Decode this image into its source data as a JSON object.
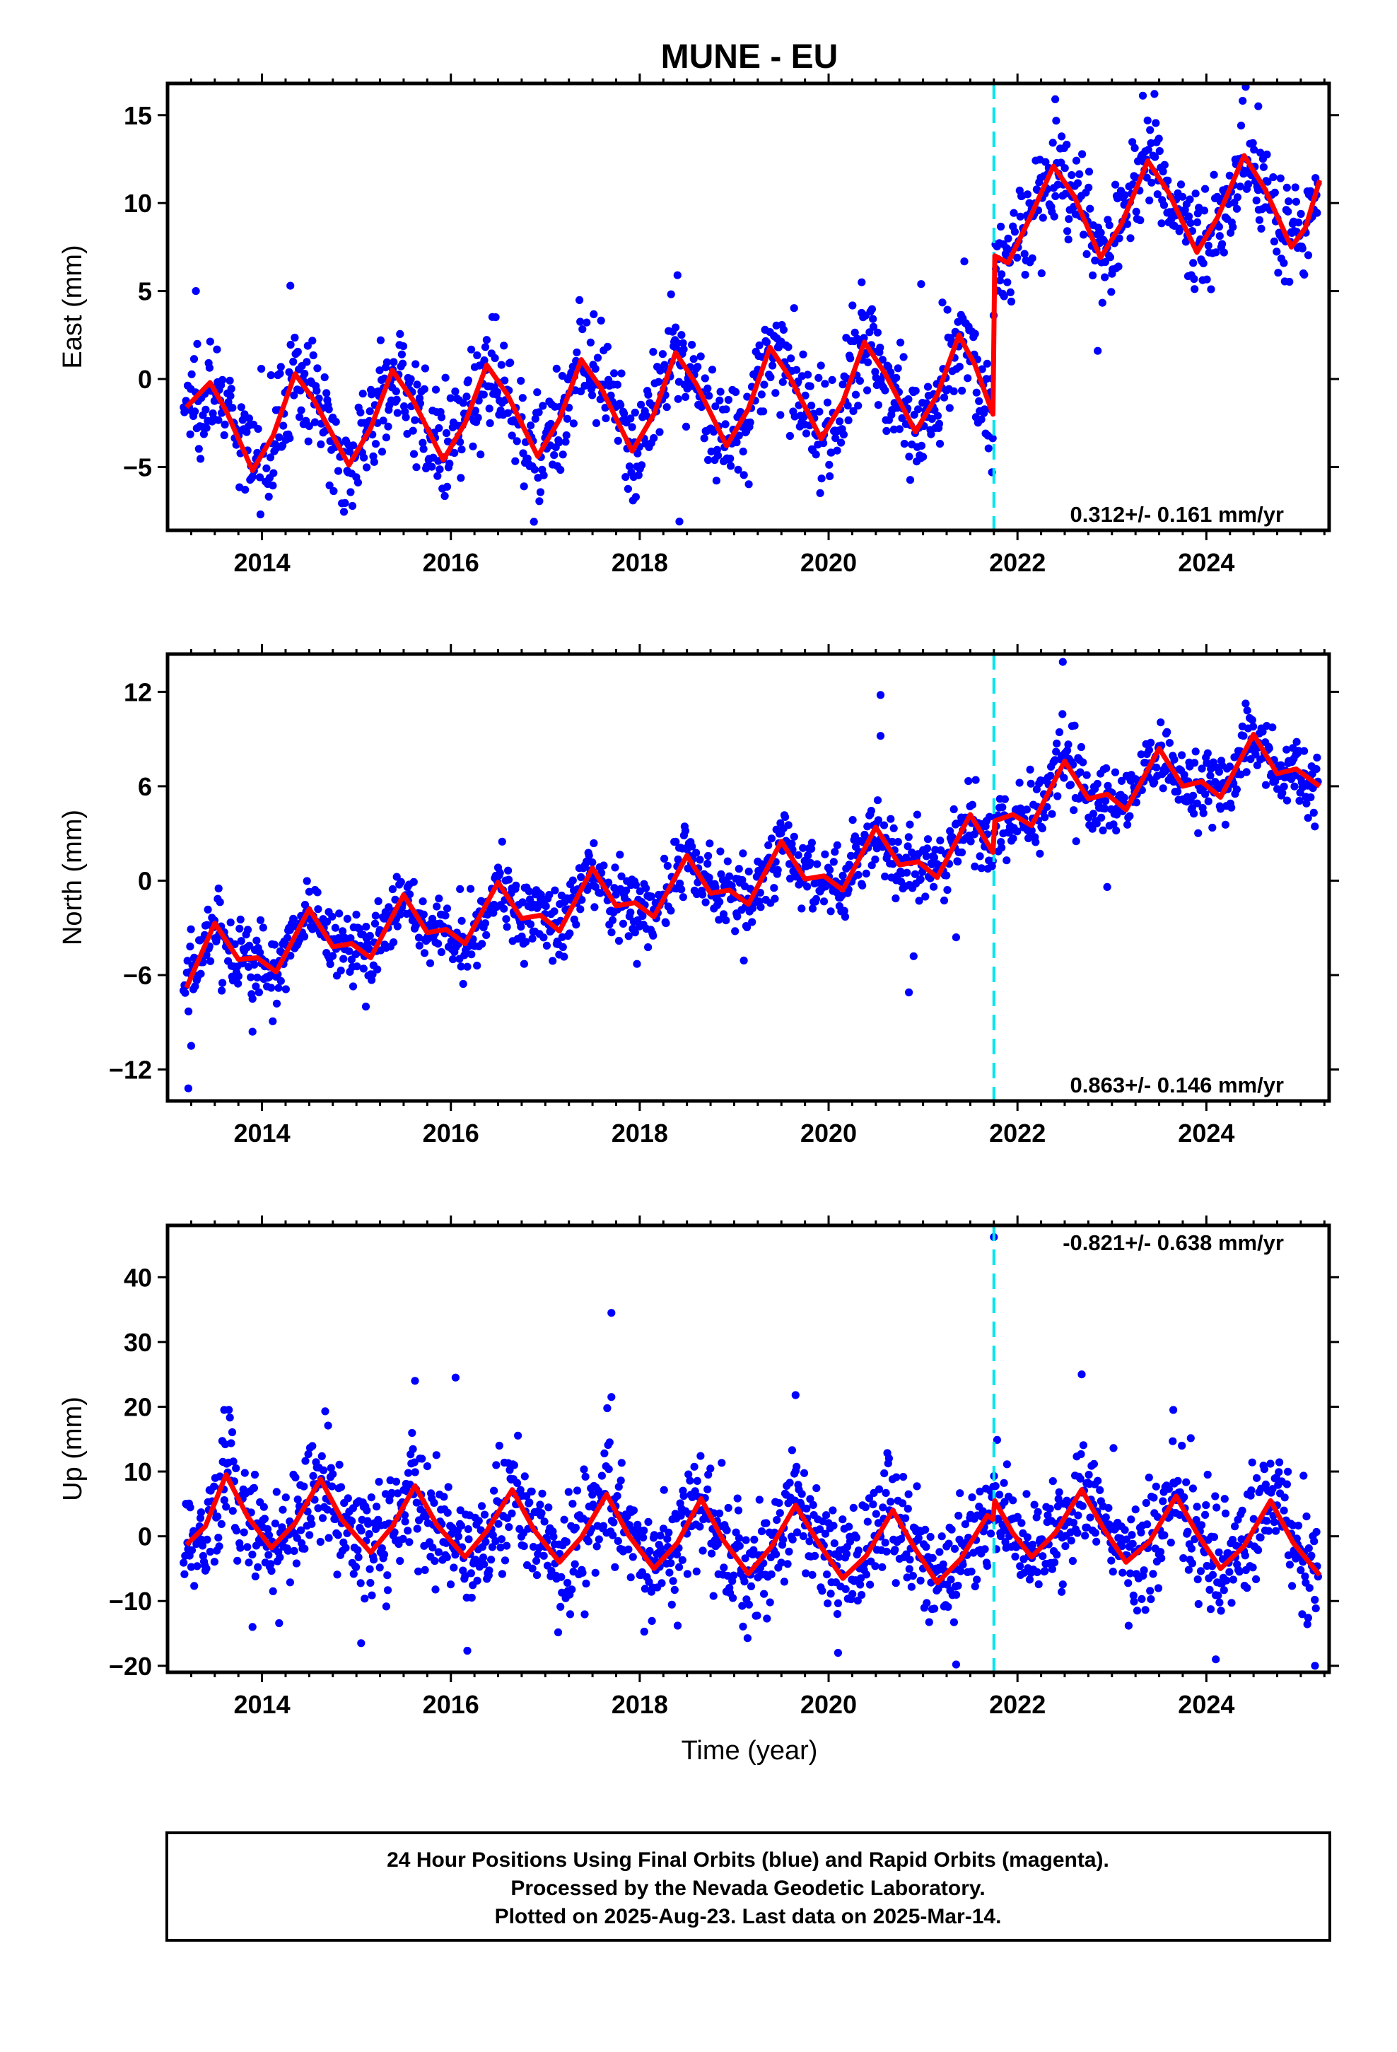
{
  "title": "MUNE - EU",
  "xlabel": "Time (year)",
  "footer": {
    "line1": "24 Hour Positions Using Final Orbits (blue) and Rapid Orbits (magenta).",
    "line2": "Processed by the Nevada Geodetic Laboratory.",
    "line3": "Plotted on 2025-Aug-23. Last data on 2025-Mar-14."
  },
  "colors": {
    "data": "#0000ff",
    "model": "#ff0000",
    "offset": "#00e5ee",
    "frame": "#000000"
  },
  "chart_data": [
    {
      "type": "scatter",
      "ylabel": "East (mm)",
      "rate_label": "0.312+/- 0.161 mm/yr",
      "xlim": [
        2013.0,
        2025.3
      ],
      "ylim": [
        -8.6,
        16.8
      ],
      "xticks": [
        2014,
        2016,
        2018,
        2020,
        2022,
        2024
      ],
      "yticks": [
        -5,
        0,
        5,
        10,
        15
      ],
      "yticklabels": [
        "−5",
        "0",
        "5",
        "10",
        "15"
      ],
      "offset_epoch": 2021.75,
      "model": [
        {
          "x": 2013.2,
          "y": -1.6
        },
        {
          "x": 2013.45,
          "y": -0.2
        },
        {
          "x": 2013.62,
          "y": -1.8
        },
        {
          "x": 2013.9,
          "y": -5.2
        },
        {
          "x": 2014.12,
          "y": -3.2
        },
        {
          "x": 2014.35,
          "y": 0.3
        },
        {
          "x": 2014.55,
          "y": -1.2
        },
        {
          "x": 2014.92,
          "y": -4.9
        },
        {
          "x": 2015.15,
          "y": -2.8
        },
        {
          "x": 2015.38,
          "y": 0.5
        },
        {
          "x": 2015.6,
          "y": -1.2
        },
        {
          "x": 2015.92,
          "y": -4.6
        },
        {
          "x": 2016.15,
          "y": -2.5
        },
        {
          "x": 2016.38,
          "y": 0.8
        },
        {
          "x": 2016.6,
          "y": -0.9
        },
        {
          "x": 2016.92,
          "y": -4.4
        },
        {
          "x": 2017.15,
          "y": -2.3
        },
        {
          "x": 2017.38,
          "y": 1.1
        },
        {
          "x": 2017.6,
          "y": -0.6
        },
        {
          "x": 2017.92,
          "y": -4.1
        },
        {
          "x": 2018.15,
          "y": -2.0
        },
        {
          "x": 2018.38,
          "y": 1.5
        },
        {
          "x": 2018.6,
          "y": -0.3
        },
        {
          "x": 2018.92,
          "y": -3.8
        },
        {
          "x": 2019.15,
          "y": -1.7
        },
        {
          "x": 2019.38,
          "y": 1.8
        },
        {
          "x": 2019.6,
          "y": 0.0
        },
        {
          "x": 2019.92,
          "y": -3.4
        },
        {
          "x": 2020.15,
          "y": -1.3
        },
        {
          "x": 2020.38,
          "y": 2.1
        },
        {
          "x": 2020.6,
          "y": 0.3
        },
        {
          "x": 2020.92,
          "y": -3.0
        },
        {
          "x": 2021.15,
          "y": -0.9
        },
        {
          "x": 2021.38,
          "y": 2.5
        },
        {
          "x": 2021.55,
          "y": 0.8
        },
        {
          "x": 2021.74,
          "y": -2.0
        },
        {
          "x": 2021.76,
          "y": 7.0
        },
        {
          "x": 2021.9,
          "y": 6.6
        },
        {
          "x": 2022.1,
          "y": 8.8
        },
        {
          "x": 2022.38,
          "y": 12.1
        },
        {
          "x": 2022.6,
          "y": 10.4
        },
        {
          "x": 2022.88,
          "y": 6.9
        },
        {
          "x": 2023.1,
          "y": 8.8
        },
        {
          "x": 2023.38,
          "y": 12.4
        },
        {
          "x": 2023.6,
          "y": 10.6
        },
        {
          "x": 2023.9,
          "y": 7.2
        },
        {
          "x": 2024.12,
          "y": 9.2
        },
        {
          "x": 2024.4,
          "y": 12.7
        },
        {
          "x": 2024.62,
          "y": 10.8
        },
        {
          "x": 2024.9,
          "y": 7.5
        },
        {
          "x": 2025.05,
          "y": 8.6
        },
        {
          "x": 2025.2,
          "y": 11.3
        }
      ],
      "scatter": {
        "sigma": 1.5,
        "n": 1400,
        "outliers": [
          {
            "x": 2013.3,
            "y": 5.0
          },
          {
            "x": 2014.3,
            "y": 5.3
          },
          {
            "x": 2018.4,
            "y": 5.9
          },
          {
            "x": 2018.42,
            "y": -8.1
          },
          {
            "x": 2020.35,
            "y": 5.5
          },
          {
            "x": 2020.98,
            "y": 5.4
          },
          {
            "x": 2022.85,
            "y": 1.6
          },
          {
            "x": 2023.45,
            "y": 16.2
          },
          {
            "x": 2022.4,
            "y": 15.9
          },
          {
            "x": 2024.55,
            "y": 15.5
          },
          {
            "x": 2021.73,
            "y": -5.3
          },
          {
            "x": 2024.05,
            "y": 5.1
          }
        ]
      }
    },
    {
      "type": "scatter",
      "ylabel": "North (mm)",
      "rate_label": "0.863+/- 0.146 mm/yr",
      "xlim": [
        2013.0,
        2025.3
      ],
      "ylim": [
        -14.0,
        14.4
      ],
      "xticks": [
        2014,
        2016,
        2018,
        2020,
        2022,
        2024
      ],
      "yticks": [
        -12,
        -6,
        0,
        6,
        12
      ],
      "yticklabels": [
        "−12",
        "−6",
        "0",
        "6",
        "12"
      ],
      "offset_epoch": 2021.75,
      "model": [
        {
          "x": 2013.2,
          "y": -6.8
        },
        {
          "x": 2013.5,
          "y": -2.7
        },
        {
          "x": 2013.75,
          "y": -5.0
        },
        {
          "x": 2013.95,
          "y": -4.9
        },
        {
          "x": 2014.15,
          "y": -5.8
        },
        {
          "x": 2014.5,
          "y": -1.8
        },
        {
          "x": 2014.75,
          "y": -4.2
        },
        {
          "x": 2014.95,
          "y": -4.0
        },
        {
          "x": 2015.15,
          "y": -4.9
        },
        {
          "x": 2015.5,
          "y": -0.9
        },
        {
          "x": 2015.75,
          "y": -3.3
        },
        {
          "x": 2015.95,
          "y": -3.1
        },
        {
          "x": 2016.15,
          "y": -4.0
        },
        {
          "x": 2016.5,
          "y": -0.1
        },
        {
          "x": 2016.75,
          "y": -2.4
        },
        {
          "x": 2016.95,
          "y": -2.2
        },
        {
          "x": 2017.15,
          "y": -3.2
        },
        {
          "x": 2017.5,
          "y": 0.8
        },
        {
          "x": 2017.75,
          "y": -1.6
        },
        {
          "x": 2017.95,
          "y": -1.4
        },
        {
          "x": 2018.15,
          "y": -2.3
        },
        {
          "x": 2018.5,
          "y": 1.6
        },
        {
          "x": 2018.75,
          "y": -0.8
        },
        {
          "x": 2018.95,
          "y": -0.6
        },
        {
          "x": 2019.15,
          "y": -1.5
        },
        {
          "x": 2019.5,
          "y": 2.5
        },
        {
          "x": 2019.75,
          "y": 0.1
        },
        {
          "x": 2019.95,
          "y": 0.3
        },
        {
          "x": 2020.15,
          "y": -0.6
        },
        {
          "x": 2020.5,
          "y": 3.4
        },
        {
          "x": 2020.75,
          "y": 1.0
        },
        {
          "x": 2020.95,
          "y": 1.2
        },
        {
          "x": 2021.15,
          "y": 0.2
        },
        {
          "x": 2021.5,
          "y": 4.2
        },
        {
          "x": 2021.74,
          "y": 1.8
        },
        {
          "x": 2021.76,
          "y": 3.8
        },
        {
          "x": 2021.95,
          "y": 4.2
        },
        {
          "x": 2022.15,
          "y": 3.5
        },
        {
          "x": 2022.5,
          "y": 7.6
        },
        {
          "x": 2022.75,
          "y": 5.2
        },
        {
          "x": 2022.95,
          "y": 5.5
        },
        {
          "x": 2023.15,
          "y": 4.5
        },
        {
          "x": 2023.5,
          "y": 8.4
        },
        {
          "x": 2023.75,
          "y": 6.0
        },
        {
          "x": 2023.95,
          "y": 6.3
        },
        {
          "x": 2024.15,
          "y": 5.3
        },
        {
          "x": 2024.5,
          "y": 9.3
        },
        {
          "x": 2024.75,
          "y": 6.8
        },
        {
          "x": 2024.95,
          "y": 7.1
        },
        {
          "x": 2025.2,
          "y": 6.0
        }
      ],
      "scatter": {
        "sigma": 1.2,
        "n": 1400,
        "outliers": [
          {
            "x": 2013.22,
            "y": -13.2
          },
          {
            "x": 2013.25,
            "y": -10.5
          },
          {
            "x": 2020.55,
            "y": 11.8
          },
          {
            "x": 2020.55,
            "y": 9.2
          },
          {
            "x": 2020.85,
            "y": -7.1
          },
          {
            "x": 2020.9,
            "y": -4.8
          },
          {
            "x": 2022.48,
            "y": 13.9
          },
          {
            "x": 2022.95,
            "y": -0.4
          },
          {
            "x": 2013.9,
            "y": -9.6
          },
          {
            "x": 2015.1,
            "y": -8.0
          },
          {
            "x": 2021.35,
            "y": -3.6
          }
        ]
      }
    },
    {
      "type": "scatter",
      "ylabel": "Up (mm)",
      "rate_label": "-0.821+/- 0.638 mm/yr",
      "xlim": [
        2013.0,
        2025.3
      ],
      "ylim": [
        -21.0,
        48.0
      ],
      "xticks": [
        2014,
        2016,
        2018,
        2020,
        2022,
        2024
      ],
      "yticks": [
        -20,
        -10,
        0,
        10,
        20,
        30,
        40
      ],
      "yticklabels": [
        "−20",
        "−10",
        "0",
        "10",
        "20",
        "30",
        "40"
      ],
      "offset_epoch": 2021.75,
      "model": [
        {
          "x": 2013.2,
          "y": -1.3
        },
        {
          "x": 2013.4,
          "y": 1.5
        },
        {
          "x": 2013.62,
          "y": 9.5
        },
        {
          "x": 2013.85,
          "y": 3.0
        },
        {
          "x": 2014.1,
          "y": -1.8
        },
        {
          "x": 2014.35,
          "y": 2.0
        },
        {
          "x": 2014.62,
          "y": 8.8
        },
        {
          "x": 2014.85,
          "y": 2.5
        },
        {
          "x": 2015.15,
          "y": -2.5
        },
        {
          "x": 2015.38,
          "y": 1.5
        },
        {
          "x": 2015.62,
          "y": 7.8
        },
        {
          "x": 2015.85,
          "y": 1.8
        },
        {
          "x": 2016.15,
          "y": -3.2
        },
        {
          "x": 2016.38,
          "y": 0.8
        },
        {
          "x": 2016.65,
          "y": 7.2
        },
        {
          "x": 2016.88,
          "y": 1.0
        },
        {
          "x": 2017.15,
          "y": -4.0
        },
        {
          "x": 2017.38,
          "y": -0.2
        },
        {
          "x": 2017.65,
          "y": 6.5
        },
        {
          "x": 2017.88,
          "y": 0.2
        },
        {
          "x": 2018.15,
          "y": -5.0
        },
        {
          "x": 2018.4,
          "y": -1.0
        },
        {
          "x": 2018.65,
          "y": 5.8
        },
        {
          "x": 2018.88,
          "y": -0.5
        },
        {
          "x": 2019.15,
          "y": -5.8
        },
        {
          "x": 2019.4,
          "y": -1.5
        },
        {
          "x": 2019.65,
          "y": 4.8
        },
        {
          "x": 2019.9,
          "y": -1.2
        },
        {
          "x": 2020.15,
          "y": -6.5
        },
        {
          "x": 2020.4,
          "y": -3.0
        },
        {
          "x": 2020.68,
          "y": 4.0
        },
        {
          "x": 2020.92,
          "y": -2.0
        },
        {
          "x": 2021.15,
          "y": -7.2
        },
        {
          "x": 2021.4,
          "y": -3.5
        },
        {
          "x": 2021.68,
          "y": 3.2
        },
        {
          "x": 2021.74,
          "y": 2.6
        },
        {
          "x": 2021.76,
          "y": 5.5
        },
        {
          "x": 2021.95,
          "y": 0.5
        },
        {
          "x": 2022.15,
          "y": -3.2
        },
        {
          "x": 2022.4,
          "y": 0.5
        },
        {
          "x": 2022.68,
          "y": 7.2
        },
        {
          "x": 2022.92,
          "y": 1.0
        },
        {
          "x": 2023.15,
          "y": -4.0
        },
        {
          "x": 2023.4,
          "y": -0.8
        },
        {
          "x": 2023.68,
          "y": 6.2
        },
        {
          "x": 2023.92,
          "y": 0.0
        },
        {
          "x": 2024.15,
          "y": -5.0
        },
        {
          "x": 2024.4,
          "y": -1.5
        },
        {
          "x": 2024.68,
          "y": 5.5
        },
        {
          "x": 2024.92,
          "y": -1.0
        },
        {
          "x": 2025.2,
          "y": -6.0
        }
      ],
      "scatter": {
        "sigma": 4.5,
        "n": 1500,
        "outliers": [
          {
            "x": 2021.75,
            "y": 46.2
          },
          {
            "x": 2017.7,
            "y": 34.5
          },
          {
            "x": 2017.7,
            "y": 21.5
          },
          {
            "x": 2016.05,
            "y": 24.5
          },
          {
            "x": 2015.62,
            "y": 24.0
          },
          {
            "x": 2022.68,
            "y": 25.0
          },
          {
            "x": 2019.65,
            "y": 21.8
          },
          {
            "x": 2023.65,
            "y": 19.5
          },
          {
            "x": 2013.6,
            "y": 19.5
          },
          {
            "x": 2021.35,
            "y": -19.8
          },
          {
            "x": 2025.15,
            "y": -20.0
          },
          {
            "x": 2024.1,
            "y": -19.0
          },
          {
            "x": 2015.05,
            "y": -16.5
          },
          {
            "x": 2013.9,
            "y": -14.0
          },
          {
            "x": 2020.1,
            "y": -18.0
          }
        ]
      }
    }
  ]
}
